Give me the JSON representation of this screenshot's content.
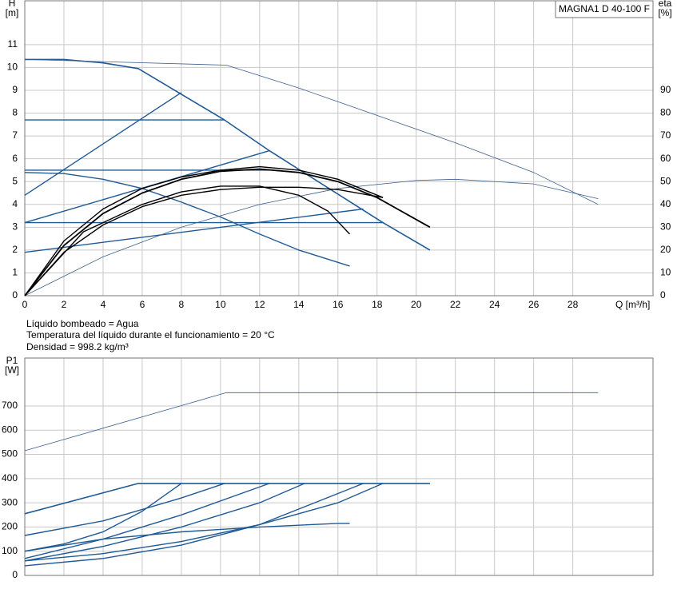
{
  "chart_data": [
    {
      "type": "line",
      "annotation": "MAGNA1 D 40-100 F",
      "ylabel": [
        "H",
        "[m]"
      ],
      "y2label": [
        "eta",
        "[%]"
      ],
      "xlabel": "Q [m³/h]",
      "xlim": [
        0,
        32.1
      ],
      "ylim": [
        0,
        12.92
      ],
      "y2lim": [
        0,
        129.2
      ],
      "xticks": [
        0,
        2,
        4,
        6,
        8,
        10,
        12,
        14,
        16,
        18,
        20,
        22,
        24,
        26,
        28
      ],
      "yticks": [
        0,
        1,
        2,
        3,
        4,
        5,
        6,
        7,
        8,
        9,
        10,
        11
      ],
      "y2ticks": [
        0,
        10,
        20,
        30,
        40,
        50,
        60,
        70,
        80,
        90
      ],
      "show_xtick_labels": true,
      "grid": true,
      "series": [
        {
          "color": "#1f5a96",
          "line_width": 1.6,
          "x": [
            0,
            2,
            4,
            5.8,
            10.2,
            12.5,
            18.3,
            20.7
          ],
          "values": [
            10.35,
            10.35,
            10.2,
            9.95,
            7.7,
            6.35,
            3.2,
            2.0
          ]
        },
        {
          "color": "#1f5a96",
          "line_width": 1.4,
          "x": [
            0,
            8
          ],
          "values": [
            4.4,
            8.9
          ]
        },
        {
          "color": "#1f5a96",
          "line_width": 1.4,
          "x": [
            0,
            10.2
          ],
          "values": [
            7.7,
            7.7
          ]
        },
        {
          "color": "#1f5a96",
          "line_width": 1.4,
          "x": [
            0,
            12.5
          ],
          "values": [
            5.5,
            5.5
          ]
        },
        {
          "color": "#1f5a96",
          "line_width": 1.4,
          "x": [
            0,
            18.3
          ],
          "values": [
            3.2,
            3.2
          ]
        },
        {
          "color": "#1f5a96",
          "line_width": 1.4,
          "x": [
            0,
            12.5
          ],
          "values": [
            3.2,
            6.35
          ]
        },
        {
          "color": "#1f5a96",
          "line_width": 1.4,
          "x": [
            0,
            17.3
          ],
          "values": [
            1.9,
            3.8
          ]
        },
        {
          "color": "#1f5a96",
          "line_width": 1.4,
          "x": [
            0,
            2,
            4,
            6,
            8,
            10,
            12,
            14,
            16.6
          ],
          "values": [
            5.4,
            5.35,
            5.1,
            4.7,
            4.1,
            3.45,
            2.7,
            2.0,
            1.3
          ]
        },
        {
          "color": "#3c5f8c",
          "line_width": 0.8,
          "x": [
            0,
            10.3,
            14,
            18,
            22,
            26,
            29.3
          ],
          "values": [
            10.35,
            10.1,
            9.1,
            7.9,
            6.7,
            5.4,
            4.0
          ]
        },
        {
          "color": "#3c5f8c",
          "line_width": 0.8,
          "axis": "y2",
          "x": [
            0,
            4,
            8,
            12,
            16,
            20,
            22,
            26,
            29.3
          ],
          "values": [
            0,
            17,
            30,
            40,
            47,
            50.5,
            51,
            49,
            42.5
          ]
        },
        {
          "color": "#000000",
          "line_width": 1.8,
          "axis": "y2",
          "x": [
            0,
            2,
            4,
            6,
            8,
            10,
            12,
            14,
            16,
            18,
            20.7
          ],
          "values": [
            0,
            22,
            36,
            45,
            51,
            54.5,
            55.5,
            54,
            50,
            43,
            30
          ]
        },
        {
          "color": "#000000",
          "line_width": 1.4,
          "axis": "y2",
          "x": [
            0,
            2,
            4,
            6,
            8,
            10,
            12,
            14,
            16,
            18.3
          ],
          "values": [
            0,
            24,
            38,
            47,
            52,
            55,
            56.5,
            55,
            51,
            43
          ]
        },
        {
          "color": "#000000",
          "line_width": 1.4,
          "axis": "y2",
          "x": [
            0,
            3,
            6,
            8,
            10,
            12,
            14,
            15.5,
            16.6
          ],
          "values": [
            0,
            28,
            40,
            45.5,
            48,
            48,
            44,
            37,
            27
          ]
        },
        {
          "color": "#000000",
          "line_width": 1.4,
          "axis": "y2",
          "x": [
            0,
            2,
            4,
            6,
            8,
            10,
            12,
            14,
            16,
            18.3
          ],
          "values": [
            0,
            19,
            31,
            39,
            44,
            46.5,
            47.5,
            47.5,
            46.5,
            43
          ]
        }
      ]
    },
    {
      "type": "line",
      "ylabel": [
        "P1",
        "[W]"
      ],
      "xlim": [
        0,
        32.1
      ],
      "ylim": [
        0,
        898
      ],
      "xticks": [
        0,
        2,
        4,
        6,
        8,
        10,
        12,
        14,
        16,
        18,
        20,
        22,
        24,
        26,
        28
      ],
      "yticks": [
        0,
        100,
        200,
        300,
        400,
        500,
        600,
        700
      ],
      "show_xtick_labels": false,
      "grid": true,
      "series": [
        {
          "color": "#3c5f8c",
          "line_width": 0.8,
          "x": [
            0,
            10.3,
            29.3
          ],
          "values": [
            515,
            755,
            755
          ]
        },
        {
          "color": "#1f5a96",
          "line_width": 1.6,
          "x": [
            0,
            5.8,
            20.7
          ],
          "values": [
            255,
            380,
            380
          ]
        },
        {
          "color": "#1f5a96",
          "line_width": 1.4,
          "x": [
            0,
            2,
            4,
            6,
            8
          ],
          "values": [
            100,
            130,
            180,
            265,
            380
          ]
        },
        {
          "color": "#1f5a96",
          "line_width": 1.4,
          "x": [
            0,
            4,
            8,
            10.2
          ],
          "values": [
            165,
            225,
            320,
            380
          ]
        },
        {
          "color": "#1f5a96",
          "line_width": 1.4,
          "x": [
            0,
            4,
            8,
            12.5
          ],
          "values": [
            70,
            150,
            250,
            380
          ]
        },
        {
          "color": "#1f5a96",
          "line_width": 1.4,
          "x": [
            0,
            4,
            8,
            12,
            14.3
          ],
          "values": [
            60,
            120,
            200,
            300,
            380
          ]
        },
        {
          "color": "#1f5a96",
          "line_width": 1.4,
          "x": [
            0,
            4,
            8,
            12,
            17.3
          ],
          "values": [
            40,
            70,
            125,
            210,
            380
          ]
        },
        {
          "color": "#1f5a96",
          "line_width": 1.4,
          "x": [
            0,
            4,
            8,
            12,
            16,
            18.3
          ],
          "values": [
            60,
            90,
            140,
            210,
            300,
            380
          ]
        },
        {
          "color": "#1f5a96",
          "line_width": 1.4,
          "x": [
            0,
            4,
            8,
            12,
            16,
            16.6
          ],
          "values": [
            100,
            150,
            180,
            200,
            215,
            215
          ]
        }
      ]
    }
  ],
  "notes": [
    "Líquido bombeado = Agua",
    "Temperatura del líquido durante el funcionamiento = 20 °C",
    "Densidad = 998.2 kg/m³"
  ]
}
